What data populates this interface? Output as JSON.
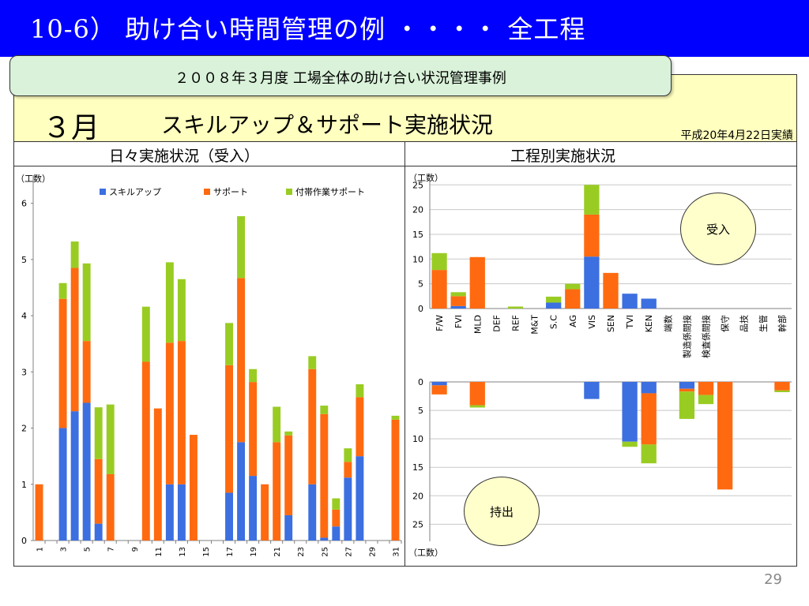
{
  "slide": {
    "title": "10-6） 助け合い時間管理の例 ・・・・ 全工程",
    "callout": "２００８年３月度 工場全体の助け合い状況管理事例",
    "month": "３月",
    "heading": "スキルアップ＆サポート実施状況",
    "report_date": "平成20年4月22日実績",
    "left_subtitle": "日々実施状況（受入）",
    "right_subtitle": "工程別実施状況",
    "bubble_receive": "受入",
    "bubble_send": "持出",
    "page_number": "29"
  },
  "colors": {
    "skillup": "#3c6fe0",
    "support": "#ff6a10",
    "incidental": "#99cc22",
    "title_bar": "#0000ff",
    "header_fill": "#ffffbf",
    "callout_fill": "#d9f2d9"
  },
  "chart_data": [
    {
      "type": "bar",
      "stacked": true,
      "unit_label": "（工数）",
      "ylim": [
        0,
        6.5
      ],
      "yticks": [
        0,
        1,
        2,
        3,
        4,
        5,
        6
      ],
      "x_tick_labels": [
        "1",
        "3",
        "5",
        "7",
        "9",
        "11",
        "13",
        "15",
        "17",
        "19",
        "21",
        "23",
        "25",
        "27",
        "29",
        "31"
      ],
      "categories": [
        1,
        2,
        3,
        4,
        5,
        6,
        7,
        8,
        9,
        10,
        11,
        12,
        13,
        14,
        15,
        16,
        17,
        18,
        19,
        20,
        21,
        22,
        23,
        24,
        25,
        26,
        27,
        28,
        29,
        30,
        31
      ],
      "legend": "top",
      "series": [
        {
          "name": "スキルアップ",
          "color": "#3c6fe0",
          "values": [
            0,
            0,
            2.0,
            2.3,
            2.45,
            0.3,
            0,
            0,
            0,
            0,
            0,
            1.0,
            1.0,
            0,
            0,
            0,
            0.85,
            1.75,
            1.15,
            0,
            0,
            0.45,
            0,
            1.0,
            0.05,
            0.25,
            1.12,
            1.5,
            0,
            0,
            0
          ]
        },
        {
          "name": "サポート",
          "color": "#ff6a10",
          "values": [
            1.0,
            0,
            2.3,
            2.55,
            1.1,
            1.15,
            1.18,
            0,
            0,
            3.18,
            2.35,
            2.52,
            2.55,
            1.88,
            0,
            0,
            2.27,
            2.92,
            1.67,
            1.0,
            1.75,
            1.42,
            0,
            2.05,
            2.2,
            0.3,
            0.28,
            1.05,
            0,
            0,
            2.15
          ]
        },
        {
          "name": "付帯作業サポート",
          "color": "#99cc22",
          "values": [
            0,
            0,
            0.28,
            0.47,
            1.38,
            0.92,
            1.24,
            0,
            0,
            0.98,
            0,
            1.43,
            1.1,
            0,
            0,
            0,
            0.75,
            1.1,
            0.23,
            0,
            0.63,
            0.07,
            0,
            0.23,
            0.15,
            0.2,
            0.24,
            0.23,
            0,
            0,
            0.07
          ]
        }
      ]
    },
    {
      "type": "bar",
      "stacked": true,
      "orientation": "upward",
      "unit_label": "（工数）",
      "ylim": [
        0,
        26
      ],
      "yticks": [
        0,
        5,
        10,
        15,
        20,
        25
      ],
      "categories": [
        "F/W",
        "FVI",
        "MLD",
        "DEF",
        "REF",
        "M&T",
        "S.C",
        "AG",
        "VIS",
        "SEN",
        "TVI",
        "KEN",
        "端数",
        "製造係間接",
        "検査係間接",
        "保守",
        "品技",
        "生管",
        "幹部"
      ],
      "series": [
        {
          "name": "スキルアップ",
          "color": "#3c6fe0",
          "values": [
            0,
            0.5,
            0,
            0,
            0,
            0,
            1.2,
            0,
            10.5,
            0,
            3.0,
            2.0,
            0,
            0,
            0,
            0,
            0,
            0,
            0
          ]
        },
        {
          "name": "サポート",
          "color": "#ff6a10",
          "values": [
            7.8,
            2.0,
            10.4,
            0,
            0,
            0,
            0,
            3.9,
            8.5,
            7.2,
            0,
            0,
            0,
            0,
            0,
            0,
            0,
            0,
            0
          ]
        },
        {
          "name": "付帯作業サポート",
          "color": "#99cc22",
          "values": [
            3.4,
            0.8,
            0,
            0,
            0.4,
            0,
            1.2,
            1.1,
            6.0,
            0,
            0,
            0,
            0,
            0,
            0,
            0,
            0,
            0,
            0
          ]
        }
      ]
    },
    {
      "type": "bar",
      "stacked": true,
      "orientation": "downward",
      "unit_label": "（工数）",
      "ylim": [
        0,
        28
      ],
      "yticks": [
        0,
        5,
        10,
        15,
        20,
        25
      ],
      "categories": [
        "F/W",
        "FVI",
        "MLD",
        "DEF",
        "REF",
        "M&T",
        "S.C",
        "AG",
        "VIS",
        "SEN",
        "TVI",
        "KEN",
        "端数",
        "製造係間接",
        "検査係間接",
        "保守",
        "品技",
        "生管",
        "幹部"
      ],
      "series": [
        {
          "name": "スキルアップ",
          "color": "#3c6fe0",
          "values": [
            0.6,
            0,
            0,
            0,
            0,
            0,
            0,
            0,
            3.0,
            0,
            10.5,
            2.0,
            0,
            1.2,
            0,
            0,
            0,
            0,
            0
          ]
        },
        {
          "name": "サポート",
          "color": "#ff6a10",
          "values": [
            1.6,
            0,
            4.1,
            0,
            0,
            0,
            0,
            0,
            0,
            0,
            0,
            9.0,
            0,
            0.5,
            2.3,
            18.9,
            0,
            0,
            1.5
          ]
        },
        {
          "name": "付帯作業サポート",
          "color": "#99cc22",
          "values": [
            0,
            0,
            0.4,
            0,
            0,
            0,
            0,
            0,
            0,
            0,
            0.9,
            3.3,
            0,
            4.8,
            1.6,
            0,
            0,
            0,
            0.3
          ]
        }
      ]
    }
  ]
}
